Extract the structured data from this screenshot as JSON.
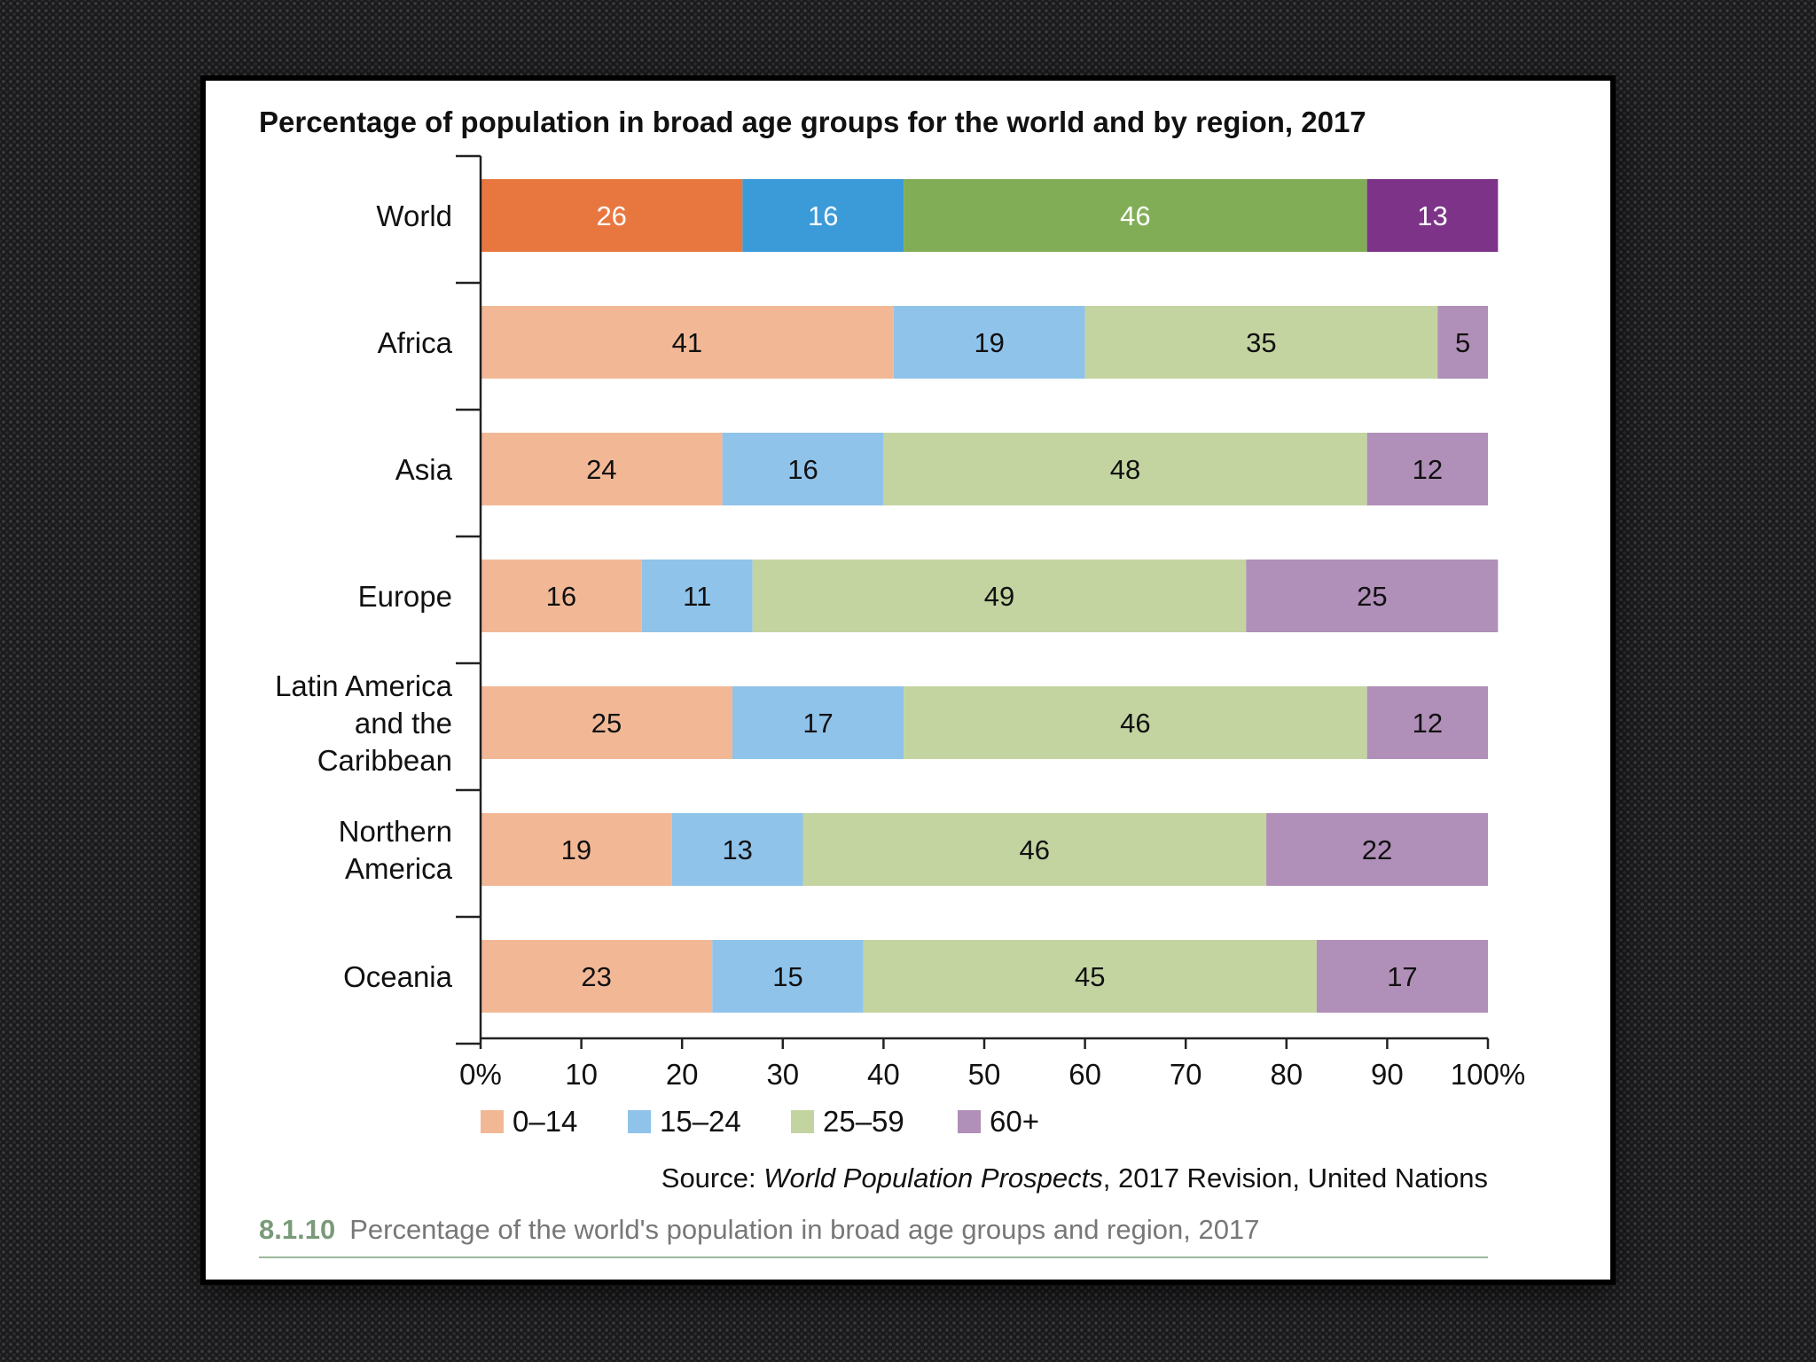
{
  "chart_data": {
    "type": "bar",
    "orientation": "horizontal",
    "stacked": true,
    "title": "Percentage of population in broad age groups for the world and by region, 2017",
    "categories": [
      [
        "World"
      ],
      [
        "Africa"
      ],
      [
        "Asia"
      ],
      [
        "Europe"
      ],
      [
        "Latin America",
        "and the",
        "Caribbean"
      ],
      [
        "Northern",
        "America"
      ],
      [
        "Oceania"
      ]
    ],
    "series": [
      {
        "name": "0–14",
        "values": [
          26,
          41,
          24,
          16,
          25,
          19,
          23
        ]
      },
      {
        "name": "15–24",
        "values": [
          16,
          19,
          16,
          11,
          17,
          13,
          15
        ]
      },
      {
        "name": "25–59",
        "values": [
          46,
          35,
          48,
          49,
          46,
          46,
          45
        ]
      },
      {
        "name": "60+",
        "values": [
          13,
          5,
          12,
          25,
          12,
          22,
          17
        ]
      }
    ],
    "colors": {
      "world": [
        "#e8773f",
        "#3b9ad8",
        "#82ad57",
        "#7c3388"
      ],
      "regions": [
        "#f2b896",
        "#8fc3ea",
        "#c3d4a1",
        "#b08fb8"
      ]
    },
    "legend_colors": [
      "#f2b896",
      "#8fc3ea",
      "#c3d4a1",
      "#b08fb8"
    ],
    "data_labels": [
      [
        "26",
        "16",
        "46",
        "13"
      ],
      [
        "41",
        "19",
        "35",
        "5"
      ],
      [
        "24",
        "16",
        "48",
        "12"
      ],
      [
        "16",
        "11",
        "49",
        "25"
      ],
      [
        "25",
        "17",
        "46",
        "12"
      ],
      [
        "19",
        "13",
        "46",
        "22"
      ],
      [
        "23",
        "15",
        "45",
        "17"
      ]
    ],
    "xlim": [
      0,
      100
    ],
    "xticks": [
      0,
      10,
      20,
      30,
      40,
      50,
      60,
      70,
      80,
      90,
      100
    ],
    "xtick_labels": [
      "0%",
      "10",
      "20",
      "30",
      "40",
      "50",
      "60",
      "70",
      "80",
      "90",
      "100%"
    ],
    "grid": false,
    "legend_position": "bottom-left"
  },
  "source": {
    "prefix": "Source: ",
    "title": "World Population Prospects",
    "suffix": ", 2017 Revision, United Nations"
  },
  "figure": {
    "number": "8.1.10",
    "caption": "Percentage of the world's population in broad age groups and region, 2017"
  }
}
